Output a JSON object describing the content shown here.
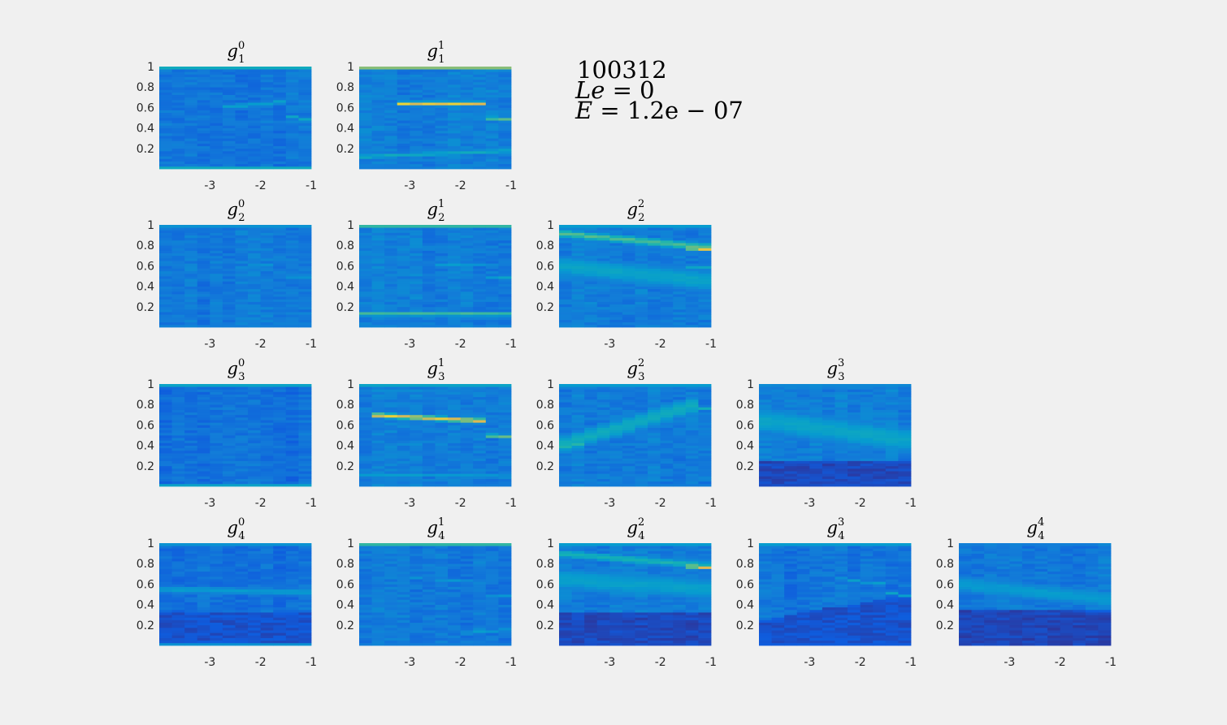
{
  "figure": {
    "info_lines": [
      {
        "text": "100312"
      },
      {
        "var": "Le",
        "rel": " = ",
        "val": "0"
      },
      {
        "var": "E",
        "rel": " = ",
        "val": "1.2e − 07"
      }
    ]
  },
  "chart_data": {
    "type": "heatmap",
    "xlim": [
      -4,
      -1
    ],
    "ylim": [
      0,
      1
    ],
    "xticks": [
      -3,
      -2,
      -1
    ],
    "xtick_labels": [
      "-3",
      "-2",
      "-1"
    ],
    "yticks": [
      0.2,
      0.4,
      0.6,
      0.8,
      1
    ],
    "ytick_labels": [
      "0.2",
      "0.4",
      "0.6",
      "0.8",
      "1"
    ],
    "colormap": "parula",
    "colors": {
      "background": "#f0f0f0",
      "low": "#352a87",
      "mid": "#10a5db",
      "high": "#f9fb0e"
    },
    "panels": [
      {
        "row": 1,
        "col": 0,
        "title": {
          "base": "g",
          "sub": "1",
          "sup": "0"
        },
        "base": 0.26,
        "edges": {
          "top": 0.55,
          "bottom": 0.55
        },
        "ridges": [
          {
            "x0": -2.8,
            "y0": 0.6,
            "x1": -1.5,
            "y1": 0.66,
            "peak": 0.5,
            "width": 0.03
          },
          {
            "x0": -1.5,
            "y0": 0.52,
            "x1": -1.0,
            "y1": 0.48,
            "peak": 0.5,
            "width": 0.025
          }
        ]
      },
      {
        "row": 1,
        "col": 1,
        "title": {
          "base": "g",
          "sub": "1",
          "sup": "1"
        },
        "base": 0.3,
        "edges": {
          "top": 0.8,
          "bottom": 0.3
        },
        "ridges": [
          {
            "x0": -3.2,
            "y0": 0.64,
            "x1": -1.5,
            "y1": 0.64,
            "peak": 0.95,
            "width": 0.025
          },
          {
            "x0": -1.5,
            "y0": 0.5,
            "x1": -1.0,
            "y1": 0.48,
            "peak": 0.75,
            "width": 0.025
          },
          {
            "x0": -4,
            "y0": 0.12,
            "x1": -1,
            "y1": 0.18,
            "peak": 0.55,
            "width": 0.03
          }
        ]
      },
      {
        "row": 2,
        "col": 0,
        "title": {
          "base": "g",
          "sub": "2",
          "sup": "0"
        },
        "base": 0.28,
        "edges": {
          "top": 0.4,
          "bottom": 0.3
        },
        "ridges": [
          {
            "x0": -2.5,
            "y0": 0.63,
            "x1": -1.8,
            "y1": 0.61,
            "peak": 0.42,
            "width": 0.02
          },
          {
            "x0": -1.5,
            "y0": 0.5,
            "x1": -1.0,
            "y1": 0.48,
            "peak": 0.42,
            "width": 0.02
          }
        ]
      },
      {
        "row": 2,
        "col": 1,
        "title": {
          "base": "g",
          "sub": "2",
          "sup": "1"
        },
        "base": 0.3,
        "edges": {
          "top": 0.65,
          "bottom": 0.3
        },
        "ridges": [
          {
            "x0": -4,
            "y0": 0.13,
            "x1": -1,
            "y1": 0.13,
            "peak": 0.75,
            "width": 0.022
          },
          {
            "x0": -2.5,
            "y0": 0.62,
            "x1": -1.3,
            "y1": 0.6,
            "peak": 0.45,
            "width": 0.02
          },
          {
            "x0": -1.5,
            "y0": 0.5,
            "x1": -1.0,
            "y1": 0.48,
            "peak": 0.5,
            "width": 0.02
          }
        ]
      },
      {
        "row": 2,
        "col": 2,
        "title": {
          "base": "g",
          "sub": "2",
          "sup": "2"
        },
        "base": 0.3,
        "edges": {
          "top": 0.45,
          "bottom": 0.25
        },
        "ridges": [
          {
            "x0": -4,
            "y0": 0.92,
            "x1": -1.0,
            "y1": 0.78,
            "peak": 0.7,
            "width": 0.05
          },
          {
            "x0": -1.5,
            "y0": 0.78,
            "x1": -1.0,
            "y1": 0.76,
            "peak": 0.95,
            "width": 0.025
          },
          {
            "x0": -4,
            "y0": 0.6,
            "x1": -1,
            "y1": 0.45,
            "peak": 0.5,
            "width": 0.14
          },
          {
            "x0": -1.5,
            "y0": 0.6,
            "x1": -1.0,
            "y1": 0.58,
            "peak": 0.55,
            "width": 0.02
          }
        ]
      },
      {
        "row": 3,
        "col": 0,
        "title": {
          "base": "g",
          "sub": "3",
          "sup": "0"
        },
        "base": 0.24,
        "edges": {
          "top": 0.5,
          "bottom": 0.5
        },
        "ridges": []
      },
      {
        "row": 3,
        "col": 1,
        "title": {
          "base": "g",
          "sub": "3",
          "sup": "1"
        },
        "base": 0.3,
        "edges": {
          "top": 0.5,
          "bottom": 0.3
        },
        "ridges": [
          {
            "x0": -3.8,
            "y0": 0.7,
            "x1": -1.5,
            "y1": 0.64,
            "peak": 0.95,
            "width": 0.03
          },
          {
            "x0": -1.5,
            "y0": 0.5,
            "x1": -1.0,
            "y1": 0.48,
            "peak": 0.75,
            "width": 0.025
          },
          {
            "x0": -4,
            "y0": 0.12,
            "x1": -1,
            "y1": 0.1,
            "peak": 0.45,
            "width": 0.03
          }
        ]
      },
      {
        "row": 3,
        "col": 2,
        "title": {
          "base": "g",
          "sub": "3",
          "sup": "2"
        },
        "base": 0.3,
        "edges": {
          "top": 0.45,
          "bottom": 0.3
        },
        "ridges": [
          {
            "x0": -4,
            "y0": 0.4,
            "x1": -1.3,
            "y1": 0.8,
            "peak": 0.55,
            "width": 0.12
          },
          {
            "x0": -4,
            "y0": 0.38,
            "x1": -3.5,
            "y1": 0.42,
            "peak": 0.62,
            "width": 0.04
          },
          {
            "x0": -1.5,
            "y0": 0.78,
            "x1": -1.0,
            "y1": 0.76,
            "peak": 0.6,
            "width": 0.02
          }
        ]
      },
      {
        "row": 3,
        "col": 3,
        "title": {
          "base": "g",
          "sub": "3",
          "sup": "3"
        },
        "base": 0.3,
        "edges": {
          "top": 0.35,
          "bottom": 0.1
        },
        "ridges": [
          {
            "x0": -4,
            "y0": 0.65,
            "x1": -1,
            "y1": 0.45,
            "peak": 0.5,
            "width": 0.18
          }
        ],
        "floor": {
          "y": 0.25,
          "level": 0.05
        }
      },
      {
        "row": 4,
        "col": 0,
        "title": {
          "base": "g",
          "sub": "4",
          "sup": "0"
        },
        "base": 0.24,
        "edges": {
          "top": 0.4,
          "bottom": 0.4
        },
        "ridges": [
          {
            "x0": -4,
            "y0": 0.55,
            "x1": -1,
            "y1": 0.52,
            "peak": 0.45,
            "width": 0.05
          }
        ],
        "floor": {
          "y": 0.32,
          "level": 0.08
        }
      },
      {
        "row": 4,
        "col": 1,
        "title": {
          "base": "g",
          "sub": "4",
          "sup": "1"
        },
        "base": 0.28,
        "edges": {
          "top": 0.65,
          "bottom": 0.3
        },
        "ridges": [
          {
            "x0": -3,
            "y0": 0.66,
            "x1": -1.5,
            "y1": 0.62,
            "peak": 0.45,
            "width": 0.02
          },
          {
            "x0": -1.5,
            "y0": 0.5,
            "x1": -1.0,
            "y1": 0.48,
            "peak": 0.42,
            "width": 0.02
          },
          {
            "x0": -2,
            "y0": 0.12,
            "x1": -1,
            "y1": 0.16,
            "peak": 0.45,
            "width": 0.025
          }
        ]
      },
      {
        "row": 4,
        "col": 2,
        "title": {
          "base": "g",
          "sub": "4",
          "sup": "2"
        },
        "base": 0.3,
        "edges": {
          "top": 0.45,
          "bottom": 0.1
        },
        "ridges": [
          {
            "x0": -4,
            "y0": 0.9,
            "x1": -1.0,
            "y1": 0.78,
            "peak": 0.6,
            "width": 0.05
          },
          {
            "x0": -1.5,
            "y0": 0.78,
            "x1": -1.0,
            "y1": 0.76,
            "peak": 0.92,
            "width": 0.025
          },
          {
            "x0": -4,
            "y0": 0.65,
            "x1": -1,
            "y1": 0.55,
            "peak": 0.48,
            "width": 0.15
          }
        ],
        "floor": {
          "y": 0.32,
          "level": 0.05
        }
      },
      {
        "row": 4,
        "col": 3,
        "title": {
          "base": "g",
          "sub": "4",
          "sup": "3"
        },
        "base": 0.26,
        "edges": {
          "top": 0.45,
          "bottom": 0.15
        },
        "ridges": [
          {
            "x0": -2.5,
            "y0": 0.66,
            "x1": -1.5,
            "y1": 0.6,
            "peak": 0.5,
            "width": 0.02
          },
          {
            "x0": -1.5,
            "y0": 0.52,
            "x1": -1.0,
            "y1": 0.48,
            "peak": 0.5,
            "width": 0.02
          }
        ],
        "floor_slope": {
          "x0": -4,
          "y0": 0.25,
          "x1": -1,
          "y1": 0.5,
          "level": 0.08
        }
      },
      {
        "row": 4,
        "col": 4,
        "title": {
          "base": "g",
          "sub": "4",
          "sup": "4"
        },
        "base": 0.28,
        "edges": {
          "top": 0.3,
          "bottom": 0.05
        },
        "ridges": [
          {
            "x0": -4,
            "y0": 0.6,
            "x1": -1,
            "y1": 0.45,
            "peak": 0.45,
            "width": 0.12
          }
        ],
        "floor": {
          "y": 0.35,
          "level": 0.04
        }
      }
    ]
  }
}
